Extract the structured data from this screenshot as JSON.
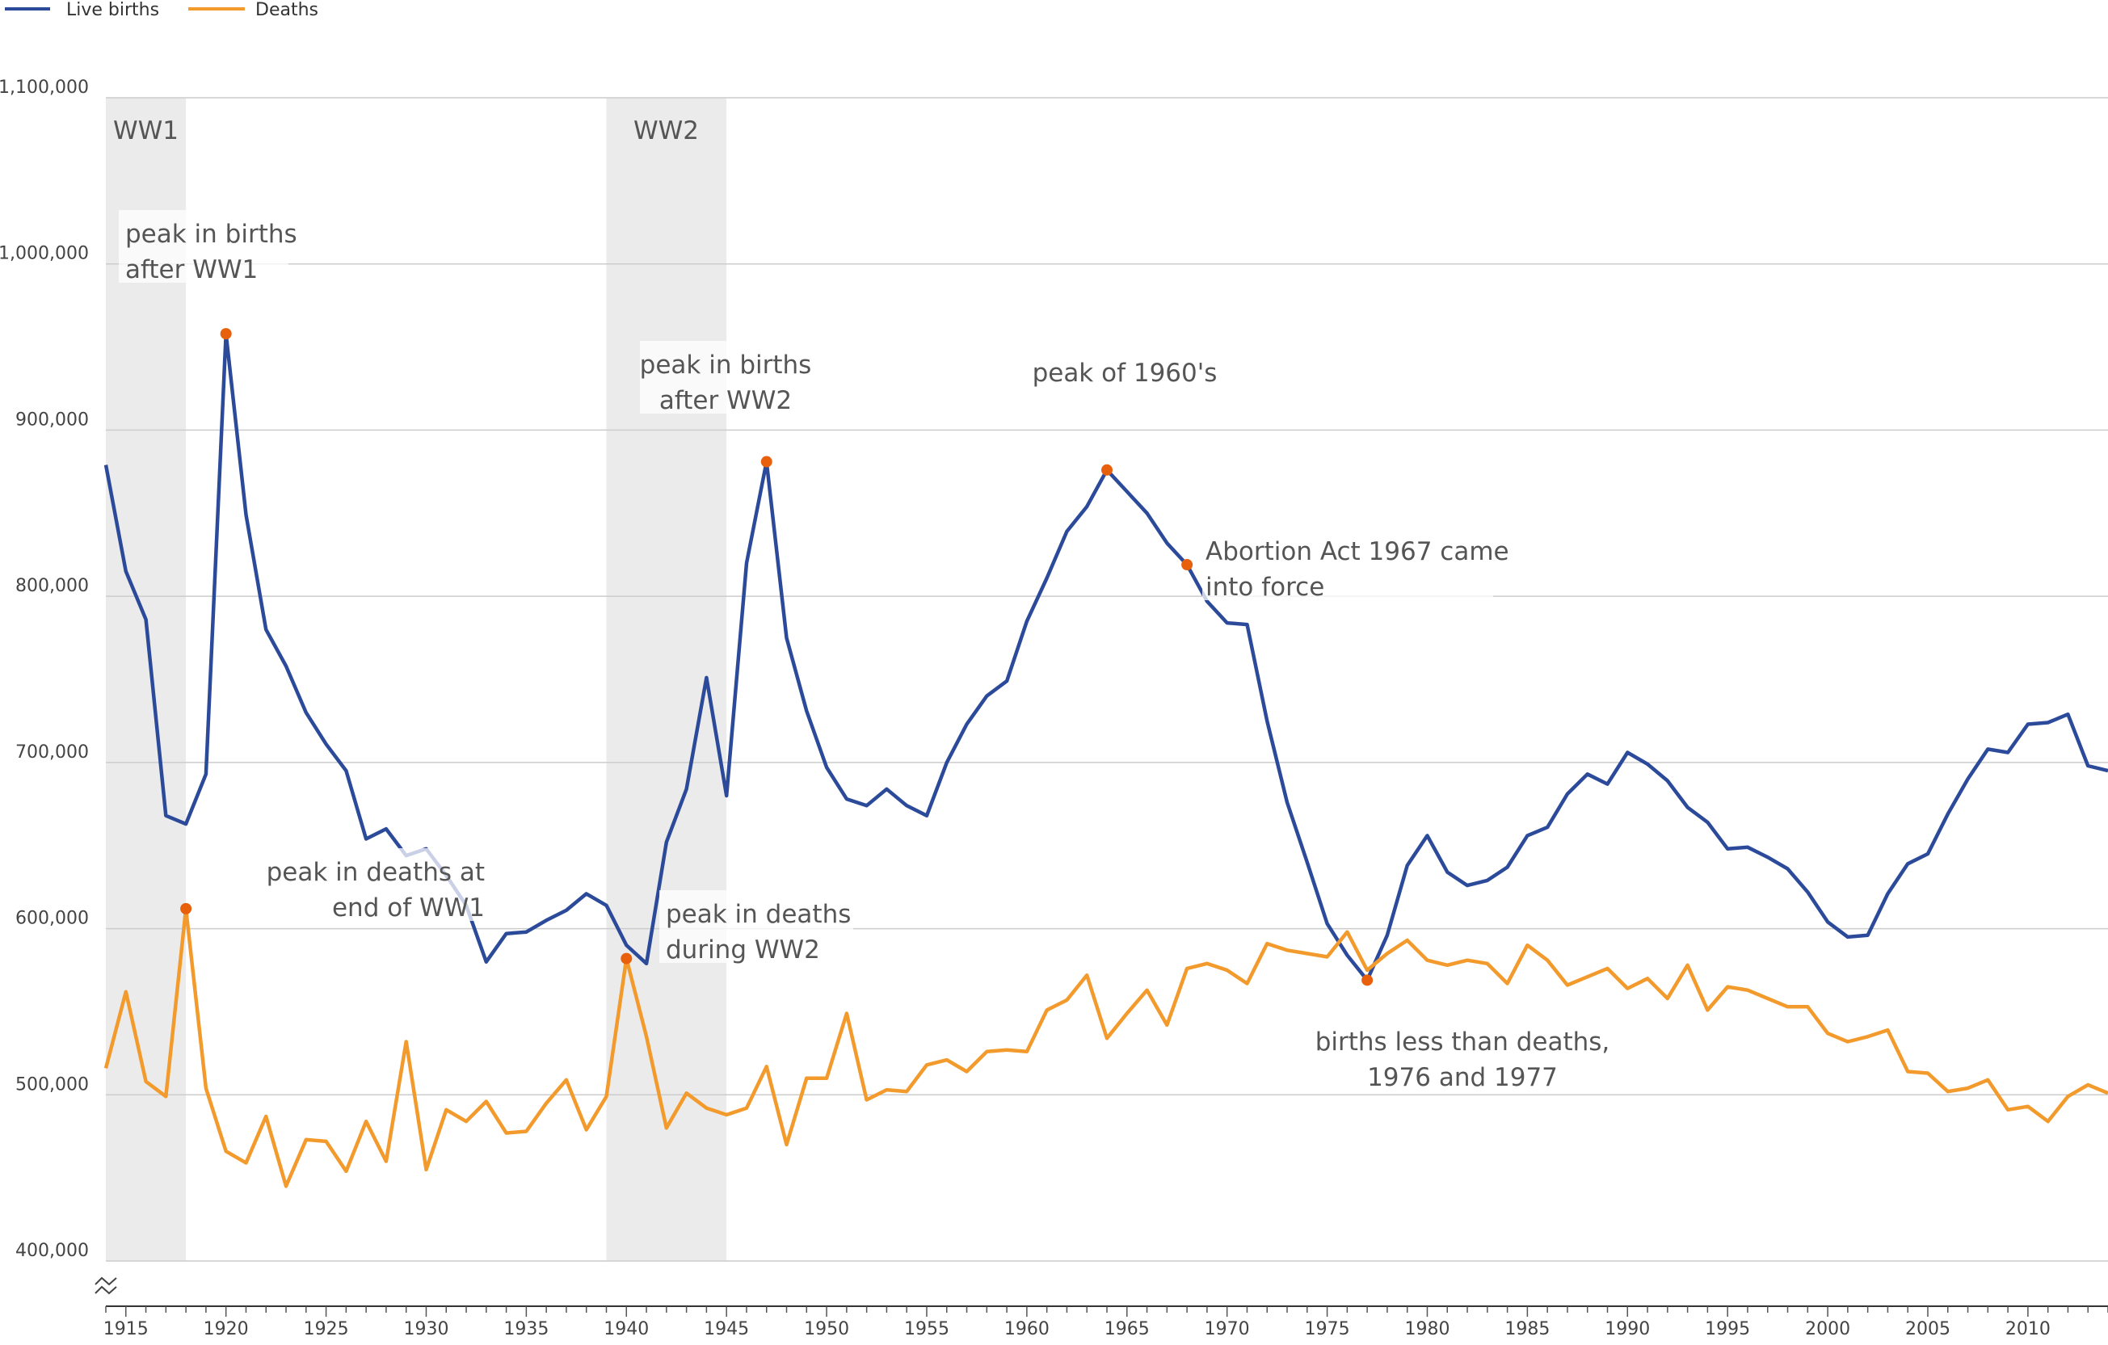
{
  "chart_data": {
    "type": "line",
    "legend": {
      "placement": "top-left",
      "entries": [
        "Live births",
        "Deaths"
      ]
    },
    "x_range": [
      1914,
      2014
    ],
    "y_range": [
      400000,
      1100000
    ],
    "axis_break": true,
    "grid": true,
    "y_ticks": [
      {
        "value": 400000,
        "label": "400,000"
      },
      {
        "value": 500000,
        "label": "500,000"
      },
      {
        "value": 600000,
        "label": "600,000"
      },
      {
        "value": 700000,
        "label": "700,000"
      },
      {
        "value": 800000,
        "label": "800,000"
      },
      {
        "value": 900000,
        "label": "900,000"
      },
      {
        "value": 1000000,
        "label": "1,000,000"
      },
      {
        "value": 1100000,
        "label": "1,100,000"
      }
    ],
    "x_ticks": [
      "1915",
      "1920",
      "1925",
      "1930",
      "1935",
      "1940",
      "1945",
      "1950",
      "1955",
      "1960",
      "1965",
      "1970",
      "1975",
      "1980",
      "1985",
      "1990",
      "1995",
      "2000",
      "2005",
      "2010"
    ],
    "x": [
      1914,
      1915,
      1916,
      1917,
      1918,
      1919,
      1920,
      1921,
      1922,
      1923,
      1924,
      1925,
      1926,
      1927,
      1928,
      1929,
      1930,
      1931,
      1932,
      1933,
      1934,
      1935,
      1936,
      1937,
      1938,
      1939,
      1940,
      1941,
      1942,
      1943,
      1944,
      1945,
      1946,
      1947,
      1948,
      1949,
      1950,
      1951,
      1952,
      1953,
      1954,
      1955,
      1956,
      1957,
      1958,
      1959,
      1960,
      1961,
      1962,
      1963,
      1964,
      1965,
      1966,
      1967,
      1968,
      1969,
      1970,
      1971,
      1972,
      1973,
      1974,
      1975,
      1976,
      1977,
      1978,
      1979,
      1980,
      1981,
      1982,
      1983,
      1984,
      1985,
      1986,
      1987,
      1988,
      1989,
      1990,
      1991,
      1992,
      1993,
      1994,
      1995,
      1996,
      1997,
      1998,
      1999,
      2000,
      2001,
      2002,
      2003,
      2004,
      2005,
      2006,
      2007,
      2008,
      2009,
      2010,
      2011,
      2012,
      2013,
      2014
    ],
    "series": [
      {
        "name": "Live births",
        "color": "#2c4a9a",
        "values": [
          879000,
          815000,
          786000,
          668000,
          663000,
          693000,
          958000,
          849000,
          780000,
          758000,
          730000,
          711000,
          695000,
          654000,
          660000,
          644000,
          648000,
          632000,
          614000,
          580000,
          597000,
          598000,
          605000,
          611000,
          621000,
          614000,
          590000,
          579000,
          652000,
          684000,
          751000,
          680000,
          820000,
          881000,
          775000,
          731000,
          697000,
          678000,
          674000,
          684000,
          674000,
          668000,
          700000,
          723000,
          740000,
          749000,
          785000,
          811000,
          839000,
          854000,
          876000,
          863000,
          850000,
          832000,
          819000,
          797000,
          784000,
          783000,
          725000,
          676000,
          640000,
          603000,
          584000,
          569000,
          596000,
          638000,
          656000,
          634000,
          626000,
          629000,
          637000,
          656000,
          661000,
          681000,
          693000,
          687000,
          706000,
          699000,
          689000,
          673000,
          664000,
          648000,
          649000,
          643000,
          636000,
          622000,
          604000,
          595000,
          596000,
          621000,
          639000,
          645000,
          669000,
          690000,
          708000,
          706000,
          723000,
          724000,
          729000,
          698000,
          695000
        ]
      },
      {
        "name": "Deaths",
        "color": "#f39a2d",
        "values": [
          516000,
          562000,
          508000,
          499000,
          612000,
          504000,
          466000,
          459000,
          487000,
          445000,
          473000,
          472000,
          454000,
          484000,
          460000,
          532000,
          455000,
          491000,
          484000,
          496000,
          477000,
          478000,
          495000,
          509000,
          479000,
          499000,
          582000,
          535000,
          480000,
          501000,
          492000,
          488000,
          492000,
          517000,
          470000,
          510000,
          510000,
          549000,
          497000,
          503000,
          502000,
          518000,
          521000,
          514000,
          526000,
          527000,
          526000,
          551000,
          557000,
          572000,
          534000,
          549000,
          563000,
          542000,
          576000,
          579000,
          575000,
          567000,
          591000,
          587000,
          585000,
          583000,
          598000,
          575000,
          585000,
          593000,
          581000,
          578000,
          581000,
          579000,
          567000,
          590000,
          581000,
          566000,
          571000,
          576000,
          564000,
          570000,
          558000,
          578000,
          551000,
          565000,
          563000,
          558000,
          553000,
          553000,
          537000,
          532000,
          535000,
          539000,
          514000,
          513000,
          502000,
          504000,
          509000,
          491000,
          493000,
          484000,
          499000,
          506000,
          501000
        ]
      }
    ],
    "shaded_periods": [
      {
        "label": "WW1",
        "start": 1914,
        "end": 1918
      },
      {
        "label": "WW2",
        "start": 1939,
        "end": 1945
      }
    ],
    "highlight_points": [
      {
        "series": 1,
        "x": 1918,
        "y": 612000
      },
      {
        "series": 0,
        "x": 1920,
        "y": 958000
      },
      {
        "series": 1,
        "x": 1940,
        "y": 582000
      },
      {
        "series": 0,
        "x": 1947,
        "y": 881000
      },
      {
        "series": 0,
        "x": 1964,
        "y": 876000
      },
      {
        "series": 0,
        "x": 1968,
        "y": 819000
      },
      {
        "series": 0,
        "x": 1977,
        "y": 569000
      }
    ],
    "highlight_color": "#e8600c",
    "annotations": [
      {
        "lines": [
          "peak in births",
          "after WW1"
        ],
        "anchor": "start"
      },
      {
        "lines": [
          "peak in births",
          "after WW2"
        ],
        "anchor": "middle"
      },
      {
        "lines": [
          "peak of 1960's"
        ],
        "anchor": "middle"
      },
      {
        "lines": [
          "Abortion Act 1967 came",
          "into force"
        ],
        "anchor": "start"
      },
      {
        "lines": [
          "peak in deaths at",
          "end of WW1"
        ],
        "anchor": "end"
      },
      {
        "lines": [
          "peak in deaths",
          "during WW2"
        ],
        "anchor": "start"
      },
      {
        "lines": [
          "births less than deaths,",
          "1976 and 1977"
        ],
        "anchor": "middle"
      }
    ]
  }
}
